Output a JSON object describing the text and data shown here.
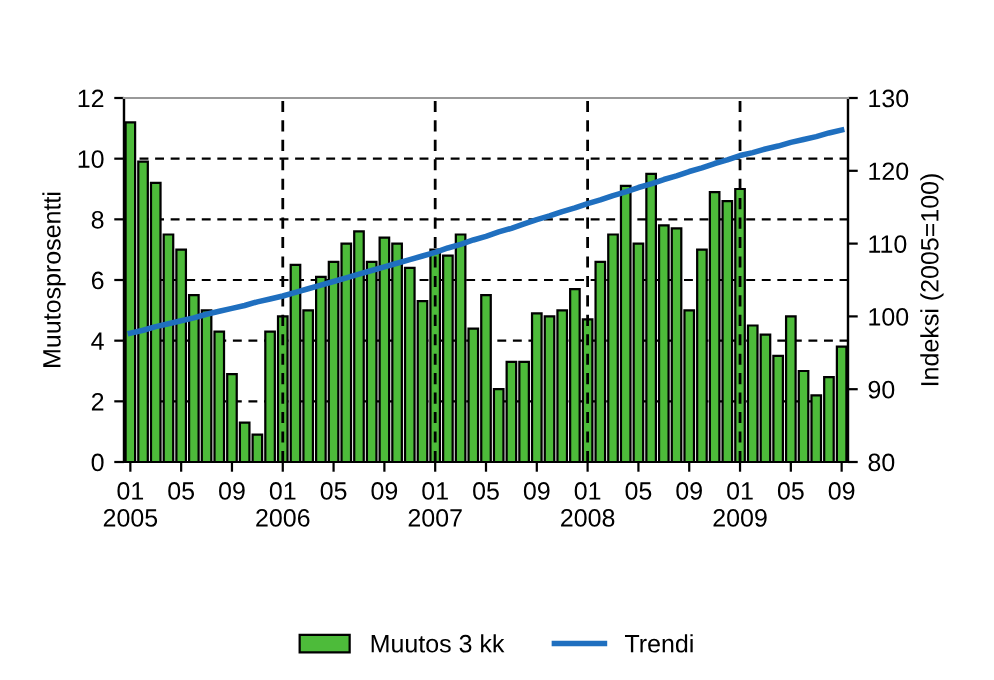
{
  "chart_data": {
    "type": "bar",
    "ylabel": "Muutosprosentti",
    "y2label": "Indeksi (2005=100)",
    "categories": [
      "01\n2005",
      null,
      null,
      null,
      "05",
      null,
      null,
      null,
      "09",
      null,
      null,
      null,
      "01\n2006",
      null,
      null,
      null,
      "05",
      null,
      null,
      null,
      "09",
      null,
      null,
      null,
      "01\n2007",
      null,
      null,
      null,
      "05",
      null,
      null,
      null,
      "09",
      null,
      null,
      null,
      "01\n2008",
      null,
      null,
      null,
      "05",
      null,
      null,
      null,
      "09",
      null,
      null,
      null,
      "01\n2009",
      null,
      null,
      null,
      "05",
      null,
      null,
      null,
      "09"
    ],
    "series": [
      {
        "name": "Muutos 3 kk",
        "color": "#4dbb3a",
        "values": [
          11.2,
          9.9,
          9.2,
          7.5,
          7.0,
          5.5,
          5.0,
          4.3,
          2.9,
          1.3,
          0.9,
          4.3,
          4.8,
          6.5,
          5.0,
          6.1,
          6.6,
          7.2,
          7.6,
          6.6,
          7.4,
          7.2,
          6.4,
          5.3,
          7.0,
          6.8,
          7.5,
          4.4,
          5.5,
          2.4,
          3.3,
          3.3,
          4.9,
          4.8,
          5.0,
          5.7,
          4.7,
          6.6,
          7.5,
          9.1,
          7.2,
          9.5,
          7.8,
          7.7,
          5.0,
          7.0,
          8.9,
          8.6,
          9.0,
          4.5,
          4.2,
          3.5,
          4.8,
          3.0,
          2.2,
          2.8,
          3.8
        ]
      },
      {
        "name": "Trendi",
        "type": "line",
        "axis": "y2",
        "color": "#1f6fbf",
        "values": [
          97.7,
          98.1,
          98.6,
          99.0,
          99.4,
          99.8,
          100.3,
          100.7,
          101.1,
          101.5,
          102.0,
          102.4,
          102.8,
          103.3,
          103.8,
          104.3,
          104.8,
          105.3,
          105.8,
          106.3,
          106.8,
          107.3,
          107.8,
          108.3,
          108.8,
          109.4,
          109.9,
          110.5,
          111.0,
          111.6,
          112.1,
          112.7,
          113.3,
          113.8,
          114.4,
          114.9,
          115.5,
          116.0,
          116.6,
          117.1,
          117.7,
          118.2,
          118.8,
          119.3,
          119.9,
          120.4,
          121.0,
          121.5,
          122.1,
          122.5,
          123.0,
          123.4,
          123.9,
          124.3,
          124.7,
          125.2,
          125.6
        ]
      }
    ],
    "ylim": [
      0,
      12
    ],
    "yticks": [
      0,
      2,
      4,
      6,
      8,
      10,
      12
    ],
    "y2lim": [
      80,
      130
    ],
    "y2ticks": [
      80,
      90,
      100,
      110,
      120,
      130
    ],
    "grid": "y",
    "legend": "bottom",
    "ref_lines": [
      {
        "axis": "x",
        "value": "01\n2006",
        "line_style": "dashed",
        "color": "#000000"
      },
      {
        "axis": "x",
        "value": "01\n2007",
        "line_style": "dashed",
        "color": "#000000"
      },
      {
        "axis": "x",
        "value": "01\n2008",
        "line_style": "dashed",
        "color": "#000000"
      },
      {
        "axis": "x",
        "value": "01\n2009",
        "line_style": "dashed",
        "color": "#000000"
      }
    ]
  }
}
